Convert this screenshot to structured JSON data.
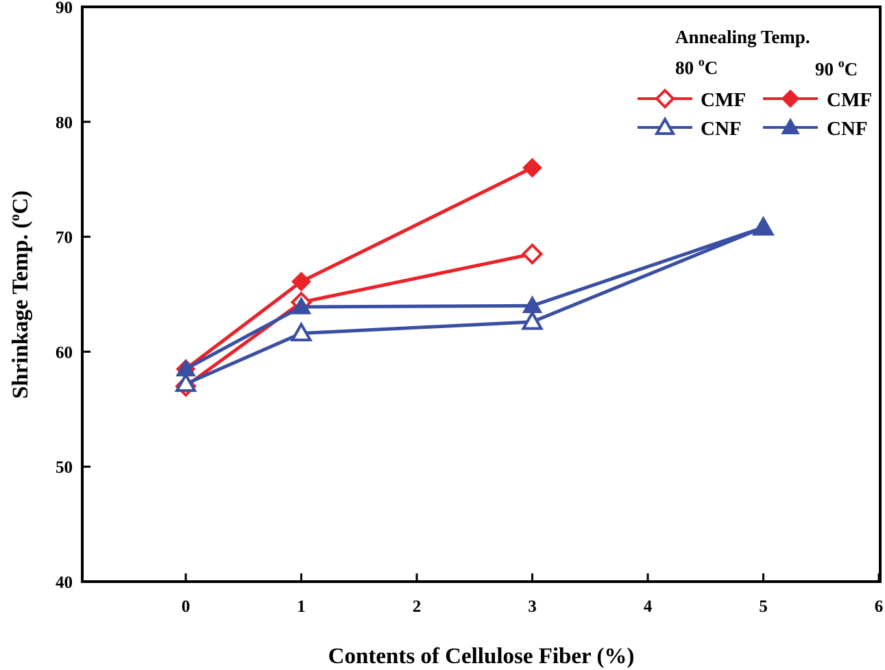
{
  "chart_data": {
    "type": "line",
    "title": "",
    "xlabel": "Contents of Cellulose Fiber (%)",
    "ylabel": "Shrinkage Temp. (°C)",
    "ylabel_parts": {
      "main": "Shrinkage Temp. (",
      "sup": "o",
      "end": "C)"
    },
    "xlim": [
      -0.9,
      6
    ],
    "ylim": [
      40,
      90
    ],
    "xticks": [
      0,
      1,
      2,
      3,
      4,
      5,
      6
    ],
    "yticks": [
      40,
      50,
      60,
      70,
      80,
      90
    ],
    "grid": false,
    "legend": {
      "placement": "top-right",
      "title": "Annealing Temp.",
      "columns": [
        {
          "label": "80",
          "unit_sup": "o",
          "unit": "C"
        },
        {
          "label": "90",
          "unit_sup": "o",
          "unit": "C"
        }
      ]
    },
    "series": [
      {
        "name": "CMF",
        "annealing": "80 °C",
        "color": "#e8232a",
        "marker": "diamond",
        "filled": false,
        "x": [
          0,
          1,
          3
        ],
        "y": [
          57.0,
          64.3,
          68.5
        ]
      },
      {
        "name": "CMF",
        "annealing": "90 °C",
        "color": "#e8232a",
        "marker": "diamond",
        "filled": true,
        "x": [
          0,
          1,
          3
        ],
        "y": [
          58.5,
          66.1,
          76.0
        ]
      },
      {
        "name": "CNF",
        "annealing": "80 °C",
        "color": "#3a4fa3",
        "marker": "triangle",
        "filled": false,
        "x": [
          0,
          1,
          3,
          5
        ],
        "y": [
          57.2,
          61.6,
          62.6,
          70.8
        ]
      },
      {
        "name": "CNF",
        "annealing": "90 °C",
        "color": "#3a4fa3",
        "marker": "triangle",
        "filled": true,
        "x": [
          0,
          1,
          3,
          5
        ],
        "y": [
          58.5,
          63.9,
          64.0,
          70.8
        ]
      }
    ]
  }
}
